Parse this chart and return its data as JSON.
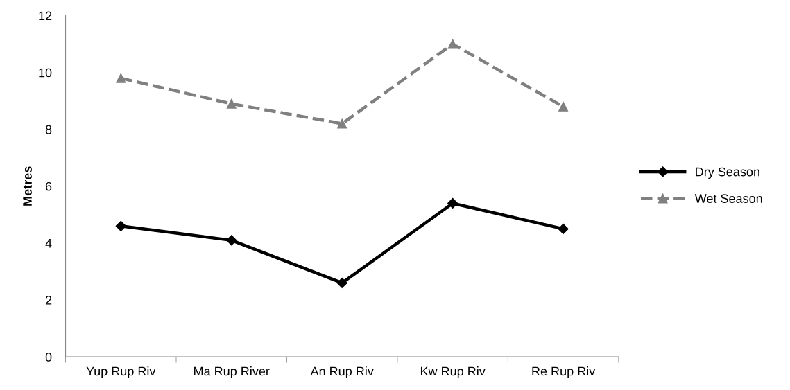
{
  "chart_data": {
    "type": "line",
    "ylabel": "Metres",
    "categories": [
      "Yup Rup Riv",
      "Ma Rup River",
      "An Rup Riv",
      "Kw Rup Riv",
      "Re Rup Riv"
    ],
    "series": [
      {
        "name": "Dry Season",
        "color": "#000000",
        "marker": "diamond",
        "line_style": "solid",
        "values": [
          4.6,
          4.1,
          2.6,
          5.4,
          4.5
        ]
      },
      {
        "name": "Wet Season",
        "color": "#808080",
        "marker": "triangle",
        "line_style": "dashed",
        "values": [
          9.8,
          8.9,
          8.2,
          11.0,
          8.8
        ]
      }
    ],
    "ylim": [
      0,
      12
    ],
    "yticks": [
      0,
      2,
      4,
      6,
      8,
      10,
      12
    ],
    "grid": false,
    "legend": "right"
  }
}
